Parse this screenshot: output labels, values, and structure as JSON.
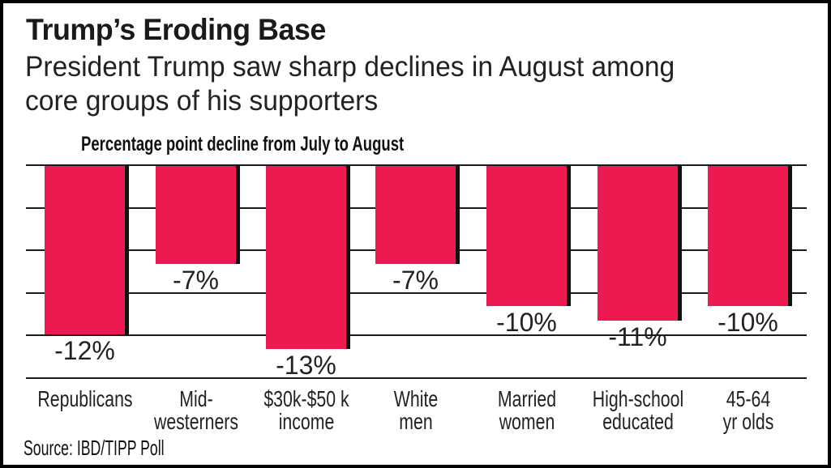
{
  "chart_data": {
    "type": "bar",
    "title": "Trump’s Eroding Base",
    "subtitle": "President Trump saw sharp declines in August among\ncore groups of his supporters",
    "axis_note": "Percentage point decline from July to August",
    "categories": [
      "Republicans",
      "Mid-\nwesterners",
      "$30k-$50 k\nincome",
      "White\nmen",
      "Married\nwomen",
      "High-school\neducated",
      "45-64\nyr olds"
    ],
    "values": [
      -12,
      -7,
      -13,
      -7,
      -10,
      -11,
      -10
    ],
    "value_labels": [
      "-12%",
      "-7%",
      "-13%",
      "-7%",
      "-10%",
      "-11%",
      "-10%"
    ],
    "xlabel": "",
    "ylabel": "",
    "ylim": [
      -15,
      0
    ],
    "grid": true,
    "gridline_interval": 3,
    "legend": "none",
    "colors": {
      "bar": "#EC1A50",
      "bar_shadow": "#111111",
      "grid": "#1a1a1a",
      "text": "#222222",
      "background": "#ffffff",
      "frame": "#000000"
    }
  },
  "source": "Source: IBD/TIPP Poll"
}
